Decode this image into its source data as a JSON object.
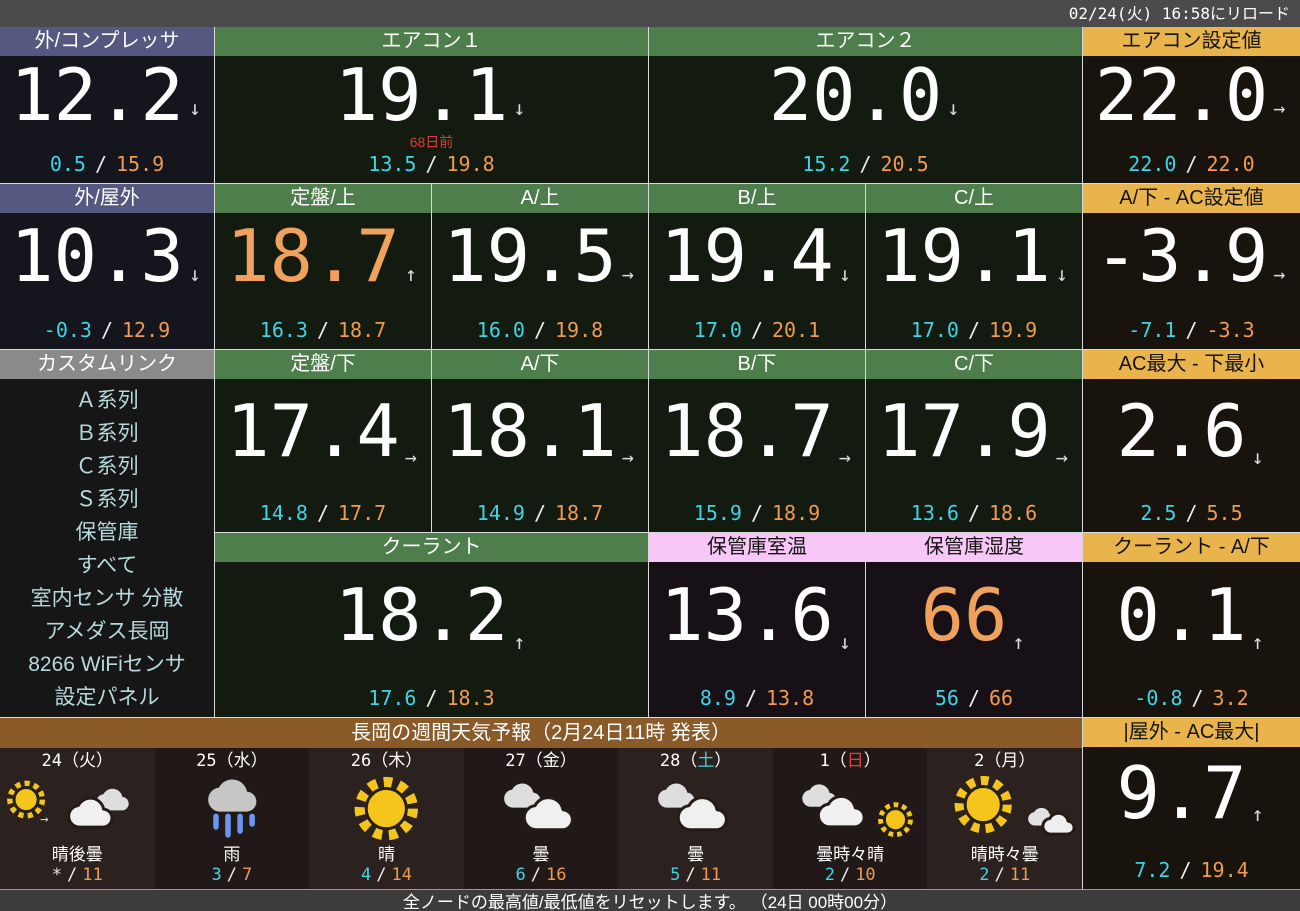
{
  "top_bar": {
    "reload_text": "02/24(火) 16:58にリロード"
  },
  "bottom_bar": {
    "reset_text": "全ノードの最高値/最低値をリセットします。 （24日 00時00分）"
  },
  "ui": {
    "minmax_separator": "/",
    "paren_open": "（",
    "paren_close": "）"
  },
  "colors": {
    "header_purple": "#555880",
    "header_green": "#4e7e4c",
    "header_yellow": "#e9b44c",
    "header_pink": "#f9c7f7",
    "header_gray": "#8a8a8a",
    "header_brown": "#8a5a28",
    "min_cyan": "#41d3e3",
    "max_orange": "#ef9b52",
    "value_orange": "#f0a25c",
    "alert_red": "#e23a3a",
    "sun_yellow": "#f6c51b",
    "rain_blue": "#6b96f0"
  },
  "cells": {
    "out_compressor": {
      "title": "外/コンプレッサ",
      "value": "12.2",
      "trend": "down",
      "min": "0.5",
      "max": "15.9"
    },
    "aircon1": {
      "title": "エアコン１",
      "value": "19.1",
      "trend": "down",
      "note": "68日前",
      "min": "13.5",
      "max": "19.8"
    },
    "aircon2": {
      "title": "エアコン２",
      "value": "20.0",
      "trend": "down",
      "min": "15.2",
      "max": "20.5"
    },
    "aircon_set": {
      "title": "エアコン設定値",
      "value": "22.0",
      "trend": "right",
      "min": "22.0",
      "max": "22.0"
    },
    "out_outdoor": {
      "title": "外/屋外",
      "value": "10.3",
      "trend": "down",
      "min": "-0.3",
      "max": "12.9"
    },
    "surface_top": {
      "title": "定盤/上",
      "value": "18.7",
      "trend": "up",
      "value_color": "#f0a25c",
      "min": "16.3",
      "max": "18.7"
    },
    "a_top": {
      "title": "A/上",
      "value": "19.5",
      "trend": "right",
      "min": "16.0",
      "max": "19.8"
    },
    "b_top": {
      "title": "B/上",
      "value": "19.4",
      "trend": "down",
      "min": "17.0",
      "max": "20.1"
    },
    "c_top": {
      "title": "C/上",
      "value": "19.1",
      "trend": "down",
      "min": "17.0",
      "max": "19.9"
    },
    "a_bottom_minus_ac_set": {
      "title": "A/下 - AC設定値",
      "value": "-3.9",
      "trend": "right",
      "min": "-7.1",
      "max": "-3.3"
    },
    "surface_bottom": {
      "title": "定盤/下",
      "value": "17.4",
      "trend": "right",
      "min": "14.8",
      "max": "17.7"
    },
    "a_bottom": {
      "title": "A/下",
      "value": "18.1",
      "trend": "right",
      "min": "14.9",
      "max": "18.7"
    },
    "b_bottom": {
      "title": "B/下",
      "value": "18.7",
      "trend": "right",
      "min": "15.9",
      "max": "18.9"
    },
    "c_bottom": {
      "title": "C/下",
      "value": "17.9",
      "trend": "right",
      "min": "13.6",
      "max": "18.6"
    },
    "ac_max_minus_bottom_min": {
      "title": "AC最大 - 下最小",
      "value": "2.6",
      "trend": "down",
      "min": "2.5",
      "max": "5.5"
    },
    "coolant": {
      "title": "クーラント",
      "value": "18.2",
      "trend": "up",
      "min": "17.6",
      "max": "18.3"
    },
    "storage_temp": {
      "title": "保管庫室温",
      "value": "13.6",
      "trend": "down",
      "min": "8.9",
      "max": "13.8"
    },
    "storage_humidity": {
      "title": "保管庫湿度",
      "value": "66",
      "trend": "up",
      "value_color": "#f0a25c",
      "min": "56",
      "max": "66"
    },
    "coolant_minus_a_bottom": {
      "title": "クーラント - A/下",
      "value": "0.1",
      "trend": "up",
      "min": "-0.8",
      "max": "3.2"
    },
    "outdoor_minus_ac_max_abs": {
      "title": "|屋外 - AC最大|",
      "value": "9.7",
      "trend": "up",
      "min": "7.2",
      "max": "19.4"
    }
  },
  "sidebar": {
    "title": "カスタムリンク",
    "links": [
      "Ａ系列",
      "Ｂ系列",
      "Ｃ系列",
      "Ｓ系列",
      "保管庫",
      "すべて",
      "室内センサ 分散",
      "アメダス長岡",
      "8266 WiFiセンサ",
      "設定パネル"
    ]
  },
  "weather": {
    "title": "長岡の週間天気予報（2月24日11時 発表）",
    "days": [
      {
        "date": "24",
        "dow": "火",
        "icon": "sun-then-cloud",
        "desc": "晴後曇",
        "min": "*",
        "max": "11",
        "min_color": "#e8e8e8"
      },
      {
        "date": "25",
        "dow": "水",
        "icon": "rain",
        "desc": "雨",
        "min": "3",
        "max": "7"
      },
      {
        "date": "26",
        "dow": "木",
        "icon": "sunny",
        "desc": "晴",
        "min": "4",
        "max": "14"
      },
      {
        "date": "27",
        "dow": "金",
        "icon": "cloudy",
        "desc": "曇",
        "min": "6",
        "max": "16"
      },
      {
        "date": "28",
        "dow": "土",
        "dow_color": "#41d3e3",
        "icon": "cloudy",
        "desc": "曇",
        "min": "5",
        "max": "11"
      },
      {
        "date": "1",
        "dow": "日",
        "dow_color": "#e04040",
        "icon": "cloudy-then-sun",
        "desc": "曇時々晴",
        "min": "2",
        "max": "10"
      },
      {
        "date": "2",
        "dow": "月",
        "icon": "sunny-then-cloud",
        "desc": "晴時々曇",
        "min": "2",
        "max": "11"
      }
    ]
  }
}
